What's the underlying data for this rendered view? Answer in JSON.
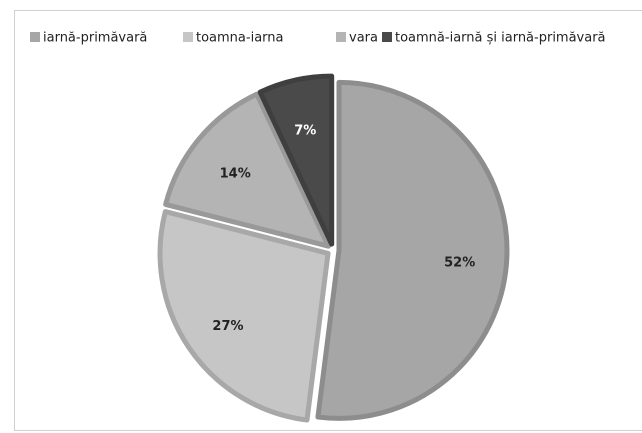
{
  "chart_data": {
    "type": "pie",
    "categories": [
      "iarnă-primăvară",
      "toamna-iarna",
      "vara",
      "toamnă-iarnă și iarnă-primăvară"
    ],
    "values": [
      52,
      27,
      14,
      7
    ],
    "value_labels": [
      "52%",
      "27%",
      "14%",
      "7%"
    ],
    "colors": [
      "#a6a6a6",
      "#c6c6c6",
      "#b4b4b4",
      "#4a4a4a"
    ],
    "legend": "top"
  }
}
